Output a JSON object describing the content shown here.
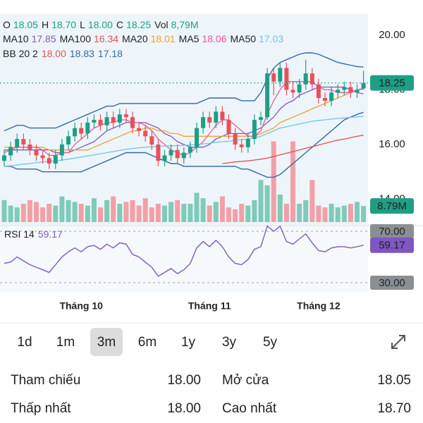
{
  "header": {
    "ohlc": [
      {
        "label": "O",
        "value": "18.05"
      },
      {
        "label": "H",
        "value": "18.70"
      },
      {
        "label": "L",
        "value": "18.00"
      },
      {
        "label": "C",
        "value": "18.25"
      }
    ],
    "value_color": "#17a08c",
    "vol": {
      "label": "Vol",
      "value": "8,79M"
    },
    "bb": {
      "label": "BB 20 2",
      "values": [
        "18.00",
        "18.83",
        "17.18"
      ],
      "colors": [
        "#e0524f",
        "#2f6aa6",
        "#2f6aa6"
      ]
    }
  },
  "chart_data": {
    "type": "candlestick",
    "categories": [
      null,
      null,
      null,
      null,
      null,
      null,
      null,
      null,
      null,
      null,
      null,
      null,
      "Tháng 10",
      null,
      null,
      null,
      null,
      null,
      null,
      null,
      null,
      null,
      null,
      null,
      null,
      null,
      null,
      null,
      null,
      null,
      null,
      null,
      "Tháng 11",
      null,
      null,
      null,
      null,
      null,
      null,
      null,
      null,
      null,
      null,
      null,
      null,
      null,
      null,
      null,
      null,
      "Tháng 12",
      null,
      null,
      null,
      null,
      null,
      null,
      null
    ],
    "ohlc": [
      [
        15.4,
        15.8,
        15.2,
        15.6
      ],
      [
        15.6,
        16.1,
        15.4,
        15.9
      ],
      [
        15.9,
        16.4,
        15.7,
        16.2
      ],
      [
        16.2,
        16.4,
        15.8,
        16.0
      ],
      [
        16.0,
        16.2,
        15.6,
        15.8
      ],
      [
        15.8,
        16.0,
        15.4,
        15.6
      ],
      [
        15.6,
        15.8,
        15.3,
        15.5
      ],
      [
        15.5,
        15.7,
        15.1,
        15.3
      ],
      [
        15.3,
        15.8,
        15.1,
        15.6
      ],
      [
        15.6,
        16.2,
        15.4,
        16.0
      ],
      [
        16.0,
        16.5,
        15.8,
        16.3
      ],
      [
        16.3,
        16.8,
        16.1,
        16.6
      ],
      [
        16.6,
        16.8,
        16.2,
        16.4
      ],
      [
        16.4,
        17.0,
        16.2,
        16.8
      ],
      [
        16.8,
        17.1,
        16.6,
        16.9
      ],
      [
        16.9,
        17.1,
        16.5,
        16.7
      ],
      [
        16.7,
        17.2,
        16.5,
        17.0
      ],
      [
        17.0,
        17.2,
        16.6,
        16.8
      ],
      [
        16.8,
        17.3,
        16.6,
        17.1
      ],
      [
        17.1,
        17.3,
        16.8,
        17.0
      ],
      [
        17.0,
        17.2,
        16.4,
        16.6
      ],
      [
        16.6,
        16.8,
        16.3,
        16.5
      ],
      [
        16.5,
        16.7,
        16.1,
        16.3
      ],
      [
        16.3,
        16.5,
        15.8,
        16.0
      ],
      [
        16.0,
        16.2,
        15.2,
        15.4
      ],
      [
        15.4,
        15.8,
        15.2,
        15.6
      ],
      [
        15.6,
        16.0,
        15.4,
        15.8
      ],
      [
        15.8,
        16.0,
        15.3,
        15.5
      ],
      [
        15.5,
        15.9,
        15.3,
        15.7
      ],
      [
        15.7,
        16.1,
        15.5,
        15.9
      ],
      [
        15.9,
        16.8,
        15.7,
        16.6
      ],
      [
        16.6,
        17.2,
        16.4,
        17.0
      ],
      [
        17.0,
        17.2,
        16.6,
        16.8
      ],
      [
        16.8,
        17.4,
        16.6,
        17.2
      ],
      [
        17.2,
        17.4,
        16.7,
        16.9
      ],
      [
        16.9,
        17.1,
        16.2,
        16.4
      ],
      [
        16.4,
        16.6,
        15.8,
        16.0
      ],
      [
        16.0,
        16.2,
        15.7,
        15.9
      ],
      [
        15.9,
        16.4,
        15.7,
        16.2
      ],
      [
        16.2,
        17.1,
        16.0,
        16.9
      ],
      [
        16.9,
        17.2,
        16.7,
        17.0
      ],
      [
        17.0,
        18.8,
        16.9,
        18.6
      ],
      [
        18.6,
        18.8,
        17.8,
        18.3
      ],
      [
        18.3,
        19.0,
        18.1,
        18.8
      ],
      [
        18.8,
        19.0,
        17.8,
        18.0
      ],
      [
        18.0,
        18.3,
        17.7,
        17.9
      ],
      [
        17.9,
        18.4,
        17.7,
        18.2
      ],
      [
        18.2,
        19.1,
        18.0,
        18.6
      ],
      [
        18.6,
        18.8,
        18.0,
        18.2
      ],
      [
        18.2,
        18.4,
        17.5,
        17.7
      ],
      [
        17.7,
        17.9,
        17.4,
        17.6
      ],
      [
        17.6,
        18.1,
        17.4,
        17.9
      ],
      [
        17.9,
        18.2,
        17.7,
        18.0
      ],
      [
        18.0,
        18.3,
        17.8,
        18.1
      ],
      [
        18.1,
        18.3,
        17.7,
        17.9
      ],
      [
        17.9,
        18.2,
        17.7,
        18.0
      ],
      [
        18.05,
        18.7,
        18.0,
        18.25
      ]
    ],
    "up_color": "#1f9e86",
    "down_color": "#e8505b",
    "ylim": [
      13.16,
      20.77
    ],
    "yticks": [
      {
        "value": 14,
        "label": "14.00"
      },
      {
        "value": 16,
        "label": "16.00"
      },
      {
        "value": 18,
        "label": "18.00"
      },
      {
        "value": 20,
        "label": "20.00"
      }
    ],
    "series": [
      {
        "name": "MA10",
        "color": "#7e57c2",
        "values": [
          15.8,
          15.8,
          15.8,
          15.8,
          15.8,
          15.8,
          15.8,
          15.8,
          15.7,
          15.7,
          15.7,
          15.8,
          15.9,
          16.0,
          16.1,
          16.3,
          16.5,
          16.6,
          16.7,
          16.8,
          16.8,
          16.8,
          16.8,
          16.7,
          16.6,
          16.4,
          16.3,
          16.1,
          16.0,
          15.9,
          15.9,
          15.9,
          16.0,
          16.2,
          16.3,
          16.4,
          16.4,
          16.4,
          16.4,
          16.5,
          16.6,
          16.8,
          17.0,
          17.3,
          17.5,
          17.6,
          17.8,
          17.9,
          18.0,
          18.1,
          18.1,
          18.1,
          18.1,
          18.1,
          18.0,
          17.9,
          17.85
        ]
      },
      {
        "name": "MA100",
        "color": "#e0524f",
        "values": [
          null,
          null,
          null,
          null,
          null,
          null,
          null,
          null,
          null,
          null,
          null,
          null,
          null,
          null,
          null,
          null,
          null,
          null,
          null,
          null,
          null,
          null,
          null,
          null,
          null,
          null,
          null,
          null,
          null,
          null,
          null,
          null,
          null,
          null,
          15.3,
          15.33,
          15.36,
          15.38,
          15.4,
          15.43,
          15.46,
          15.5,
          15.56,
          15.62,
          15.68,
          15.74,
          15.8,
          15.86,
          15.92,
          15.98,
          16.04,
          16.1,
          16.16,
          16.2,
          16.25,
          16.3,
          16.34
        ]
      },
      {
        "name": "MA20",
        "color": "#f0a030",
        "values": [
          15.9,
          15.9,
          15.9,
          15.9,
          15.9,
          15.9,
          15.9,
          15.8,
          15.8,
          15.8,
          15.8,
          15.8,
          15.8,
          15.8,
          15.9,
          16.0,
          16.1,
          16.2,
          16.3,
          16.4,
          16.5,
          16.5,
          16.6,
          16.6,
          16.5,
          16.5,
          16.4,
          16.4,
          16.3,
          16.3,
          16.3,
          16.3,
          16.3,
          16.3,
          16.3,
          16.3,
          16.3,
          16.3,
          16.3,
          16.3,
          16.4,
          16.5,
          16.6,
          16.8,
          16.9,
          17.0,
          17.1,
          17.2,
          17.3,
          17.4,
          17.5,
          17.6,
          17.7,
          17.8,
          17.9,
          18.0,
          18.01
        ]
      },
      {
        "name": "MA5",
        "color": "#e8589a",
        "values": [
          15.7,
          15.8,
          15.9,
          15.9,
          15.9,
          15.9,
          15.8,
          15.6,
          15.6,
          15.7,
          15.7,
          16.0,
          16.2,
          16.4,
          16.6,
          16.7,
          16.8,
          16.8,
          16.9,
          16.9,
          16.8,
          16.8,
          16.7,
          16.5,
          16.2,
          16.0,
          15.8,
          15.7,
          15.6,
          15.7,
          15.9,
          16.1,
          16.4,
          16.7,
          16.9,
          16.9,
          16.7,
          16.5,
          16.3,
          16.3,
          16.5,
          17.1,
          17.6,
          18.0,
          18.3,
          18.3,
          18.3,
          18.3,
          18.3,
          18.1,
          18.0,
          18.0,
          17.9,
          17.9,
          17.9,
          18.0,
          18.06
        ]
      },
      {
        "name": "MA50",
        "color": "#6cc6e6",
        "values": [
          15.2,
          15.22,
          15.25,
          15.28,
          15.3,
          15.33,
          15.36,
          15.38,
          15.4,
          15.43,
          15.46,
          15.5,
          15.54,
          15.58,
          15.62,
          15.66,
          15.7,
          15.74,
          15.78,
          15.82,
          15.85,
          15.88,
          15.9,
          15.92,
          15.93,
          15.94,
          15.95,
          15.96,
          15.97,
          15.98,
          16.0,
          16.02,
          16.05,
          16.08,
          16.1,
          16.12,
          16.15,
          16.18,
          16.2,
          16.25,
          16.3,
          16.4,
          16.5,
          16.6,
          16.65,
          16.7,
          16.75,
          16.8,
          16.85,
          16.88,
          16.9,
          16.93,
          16.95,
          16.97,
          16.99,
          17.01,
          17.03
        ]
      }
    ],
    "bb_color": "#2f6aa6",
    "bb_upper": [
      16.5,
      16.6,
      16.7,
      16.7,
      16.6,
      16.6,
      16.6,
      16.6,
      16.6,
      16.7,
      16.8,
      16.9,
      17.0,
      17.1,
      17.2,
      17.3,
      17.4,
      17.4,
      17.5,
      17.5,
      17.5,
      17.5,
      17.5,
      17.5,
      17.5,
      17.5,
      17.5,
      17.5,
      17.5,
      17.5,
      17.5,
      17.6,
      17.7,
      17.7,
      17.7,
      17.7,
      17.7,
      17.6,
      17.6,
      17.6,
      17.9,
      18.4,
      18.8,
      19.0,
      19.1,
      19.2,
      19.3,
      19.35,
      19.35,
      19.3,
      19.2,
      19.1,
      19.0,
      18.95,
      18.9,
      18.85,
      18.83
    ],
    "bb_lower": [
      15.2,
      15.2,
      15.1,
      15.1,
      15.1,
      15.1,
      15.0,
      15.0,
      15.0,
      15.0,
      15.0,
      15.0,
      15.0,
      15.1,
      15.2,
      15.3,
      15.4,
      15.5,
      15.6,
      15.7,
      15.7,
      15.7,
      15.7,
      15.6,
      15.5,
      15.4,
      15.3,
      15.3,
      15.2,
      15.2,
      15.2,
      15.2,
      15.2,
      15.2,
      15.2,
      15.2,
      15.2,
      15.1,
      15.1,
      15.0,
      14.9,
      14.8,
      14.8,
      14.9,
      15.1,
      15.3,
      15.5,
      15.7,
      15.9,
      16.1,
      16.3,
      16.5,
      16.7,
      16.9,
      17.0,
      17.1,
      17.18
    ],
    "volume": {
      "values": [
        12,
        9,
        8,
        10,
        12,
        11,
        8,
        10,
        9,
        14,
        12,
        11,
        10,
        9,
        13,
        8,
        12,
        14,
        10,
        11,
        12,
        9,
        13,
        8,
        10,
        9,
        11,
        12,
        10,
        10,
        16,
        13,
        9,
        11,
        14,
        8,
        7,
        10,
        9,
        12,
        23,
        20,
        44,
        15,
        10,
        44,
        10,
        12,
        23,
        9,
        8,
        10,
        8,
        9,
        10,
        11,
        8.79
      ],
      "value_labels": [
        null,
        null,
        null,
        null,
        null,
        null,
        null,
        null,
        null,
        null,
        null,
        null,
        null,
        null,
        null,
        null,
        null,
        null,
        null,
        null,
        null,
        null,
        null,
        null,
        null,
        null,
        null,
        null,
        null,
        null,
        null,
        null,
        null,
        null,
        null,
        null,
        null,
        null,
        null,
        null,
        null,
        null,
        null,
        null,
        null,
        null,
        null,
        null,
        null,
        null,
        null,
        null,
        null,
        null,
        null,
        null,
        "8.79M"
      ],
      "ylim": [
        0,
        50
      ],
      "up_color": "#7fcab8",
      "down_color": "#f2a0a6"
    },
    "rsi": {
      "name": "RSI 14",
      "color": "#7e57c2",
      "values": [
        45,
        46,
        50,
        47,
        44,
        42,
        40,
        38,
        44,
        50,
        54,
        57,
        54,
        58,
        59,
        56,
        60,
        57,
        61,
        60,
        52,
        50,
        46,
        42,
        35,
        38,
        41,
        37,
        40,
        45,
        57,
        62,
        58,
        63,
        58,
        50,
        45,
        44,
        48,
        56,
        58,
        74,
        70,
        74,
        62,
        60,
        64,
        68,
        61,
        55,
        54,
        57,
        58,
        58,
        57,
        58,
        59.17
      ],
      "ylim": [
        22.3,
        74.4
      ],
      "yticks": [
        {
          "value": 30,
          "label": "30.00"
        },
        {
          "value": 70,
          "label": "70.00"
        }
      ]
    }
  },
  "range_tabs": {
    "items": [
      "1d",
      "1m",
      "3m",
      "6m",
      "1y",
      "3y",
      "5y"
    ],
    "selected": 2
  },
  "quote": [
    {
      "label": "Tham chiếu",
      "value": "18.00",
      "color": "#e3a800"
    },
    {
      "label": "Mở cửa",
      "value": "18.05",
      "color": "#22a82e"
    },
    {
      "label": "Thấp nhất",
      "value": "18.00",
      "color": "#e3a800"
    },
    {
      "label": "Cao nhất",
      "value": "18.70",
      "color": "#22a82e"
    }
  ]
}
